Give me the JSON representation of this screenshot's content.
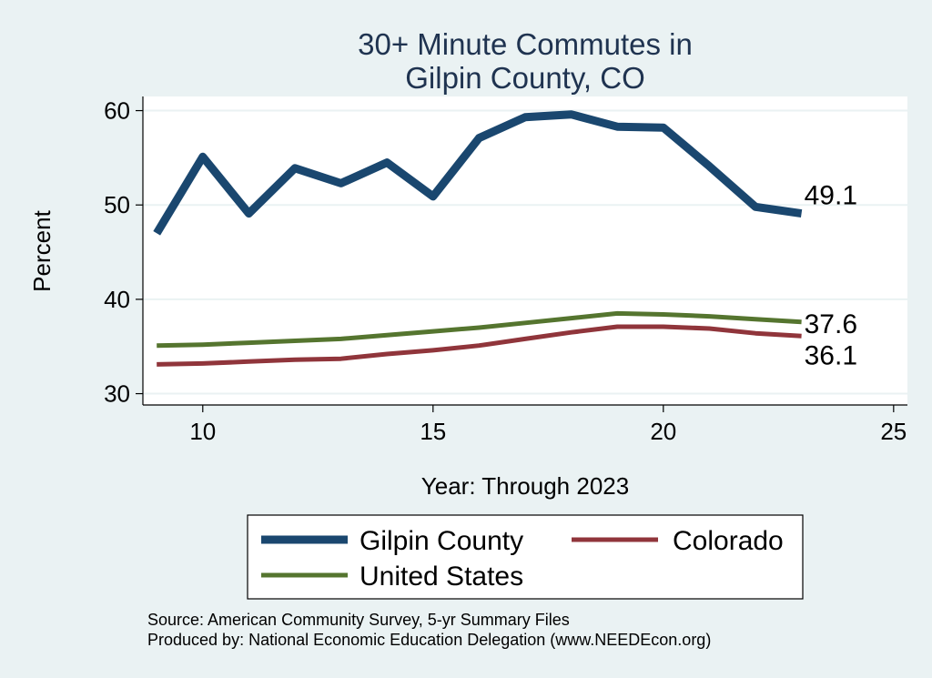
{
  "chart_data": {
    "type": "line",
    "title": [
      "30+ Minute Commutes in",
      "Gilpin County, CO"
    ],
    "xlabel": "Year: Through 2023",
    "ylabel": "Percent",
    "xlim": [
      8.7,
      25.3
    ],
    "ylim": [
      28.8,
      61.5
    ],
    "xticks": [
      10,
      15,
      20,
      25
    ],
    "yticks": [
      30,
      40,
      50,
      60
    ],
    "grid": "horizontal",
    "legend_position": "bottom",
    "x": [
      9,
      10,
      11,
      12,
      13,
      14,
      15,
      16,
      17,
      18,
      19,
      20,
      21,
      22,
      23
    ],
    "series": [
      {
        "name": "Gilpin County",
        "color": "#1a476f",
        "width": 9,
        "values": [
          47.0,
          55.1,
          49.1,
          53.9,
          52.3,
          54.5,
          50.9,
          57.1,
          59.3,
          59.6,
          58.3,
          58.2,
          54.1,
          49.8,
          49.1
        ],
        "end_label": "49.1"
      },
      {
        "name": "Colorado",
        "color": "#90353b",
        "width": 5,
        "values": [
          33.1,
          33.2,
          33.4,
          33.6,
          33.7,
          34.2,
          34.6,
          35.1,
          35.8,
          36.5,
          37.1,
          37.1,
          36.9,
          36.4,
          36.1
        ],
        "end_label": "36.1"
      },
      {
        "name": "United States",
        "color": "#55752f",
        "width": 5,
        "values": [
          35.1,
          35.2,
          35.4,
          35.6,
          35.8,
          36.2,
          36.6,
          37.0,
          37.5,
          38.0,
          38.5,
          38.4,
          38.2,
          37.9,
          37.6
        ],
        "end_label": "37.6"
      }
    ],
    "source_lines": [
      "Source: American Community Survey, 5-yr Summary Files",
      "Produced by: National Economic Education Delegation (www.NEEDEcon.org)"
    ]
  }
}
